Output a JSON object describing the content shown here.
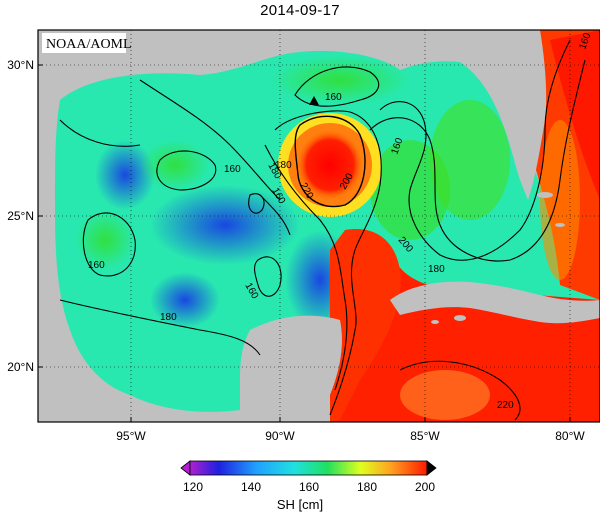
{
  "title": "2014-09-17",
  "source_label": "NOAA/AOML",
  "lon_ticks": [
    "95°W",
    "90°W",
    "85°W",
    "80°W"
  ],
  "lat_ticks": [
    "30°N",
    "25°N",
    "20°N"
  ],
  "contour_labels": [
    "160",
    "180",
    "160",
    "160",
    "180",
    "160",
    "220",
    "200",
    "160",
    "200",
    "180",
    "160",
    "160",
    "220",
    "180"
  ],
  "colorbar": {
    "label": "SH [cm]",
    "ticks": [
      "120",
      "140",
      "160",
      "180",
      "200"
    ],
    "min": 120,
    "max": 200
  },
  "colors": {
    "land": "#c0c0c0",
    "ocean_low": "#1060e8",
    "ocean_mid": "#20e060",
    "ocean_high": "#ff1a00",
    "marker": "#000000"
  },
  "marker": "triangle-marker"
}
